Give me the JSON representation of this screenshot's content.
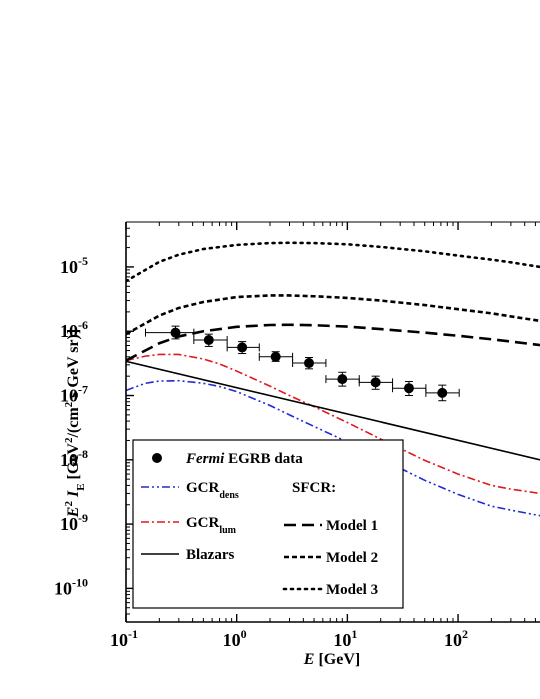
{
  "chart_data": {
    "type": "line",
    "xlabel": {
      "var": "E",
      "unit": "[GeV]"
    },
    "ylabel": {
      "text": "E² I_E [GeV²/(cm² s GeV sr)]"
    },
    "xscale": "log",
    "yscale": "log",
    "xlim": [
      0.1,
      550
    ],
    "ylim": [
      3e-11,
      5e-05
    ],
    "xticks": [
      {
        "value": 0.1,
        "label": "10",
        "exp": "-1"
      },
      {
        "value": 1,
        "label": "10",
        "exp": "0"
      },
      {
        "value": 10,
        "label": "10",
        "exp": "1"
      },
      {
        "value": 100,
        "label": "10",
        "exp": "2"
      }
    ],
    "yticks": [
      {
        "value": 1e-10,
        "label": "10",
        "exp": "-10"
      },
      {
        "value": 1e-09,
        "label": "10",
        "exp": "-9"
      },
      {
        "value": 1e-08,
        "label": "10",
        "exp": "-8"
      },
      {
        "value": 1e-07,
        "label": "10",
        "exp": "-7"
      },
      {
        "value": 1e-06,
        "label": "10",
        "exp": "-6"
      },
      {
        "value": 1e-05,
        "label": "10",
        "exp": "-5"
      }
    ],
    "grid": false,
    "legend": {
      "placement": "bottom-left",
      "data_label": "Fermi EGRB data",
      "data_label_italic": "Fermi",
      "data_label_rest": " EGRB data",
      "sfcr_title": "SFCR:"
    },
    "data_points": {
      "name": "Fermi EGRB data",
      "x": [
        0.28,
        0.56,
        1.12,
        2.25,
        4.5,
        9.0,
        18.0,
        36.0,
        72.0
      ],
      "x_lo": [
        0.15,
        0.41,
        0.82,
        1.6,
        3.2,
        6.4,
        12.8,
        25.6,
        51.2
      ],
      "x_hi": [
        0.41,
        0.82,
        1.6,
        3.2,
        6.4,
        12.8,
        25.6,
        51.2,
        102.4
      ],
      "y": [
        9.5e-07,
        7.3e-07,
        5.6e-07,
        4e-07,
        3.2e-07,
        1.8e-07,
        1.6e-07,
        1.3e-07,
        1.1e-07
      ],
      "y_err_lo": [
        7.6e-07,
        5.8e-07,
        4.5e-07,
        3.4e-07,
        2.6e-07,
        1.4e-07,
        1.25e-07,
        1e-07,
        8.3e-08
      ],
      "y_err_hi": [
        1.2e-06,
        9e-07,
        6.9e-07,
        4.8e-07,
        3.9e-07,
        2.3e-07,
        2e-07,
        1.65e-07,
        1.45e-07
      ],
      "color": "#000000"
    },
    "series": [
      {
        "name": "GCR",
        "sub": "dens",
        "style": "dash-dot-dot",
        "color": "#1f2bd6",
        "x": [
          0.1,
          0.15,
          0.2,
          0.3,
          0.5,
          0.7,
          1,
          2,
          3,
          5,
          10,
          20,
          30,
          50,
          100,
          200,
          300,
          550
        ],
        "y": [
          1.2e-07,
          1.55e-07,
          1.68e-07,
          1.7e-07,
          1.55e-07,
          1.38e-07,
          1.15e-07,
          7e-08,
          5e-08,
          3.3e-08,
          1.9e-08,
          1.05e-08,
          7.4e-09,
          4.8e-09,
          2.9e-09,
          1.9e-09,
          1.65e-09,
          1.35e-09
        ]
      },
      {
        "name": "GCR",
        "sub": "lum",
        "style": "dash-dot",
        "color": "#e0191d",
        "x": [
          0.1,
          0.15,
          0.2,
          0.3,
          0.5,
          0.7,
          1,
          2,
          3,
          5,
          10,
          20,
          30,
          50,
          100,
          200,
          300,
          550
        ],
        "y": [
          3.5e-07,
          4.1e-07,
          4.35e-07,
          4.35e-07,
          3.7e-07,
          3.1e-07,
          2.4e-07,
          1.4e-07,
          1e-07,
          6.7e-08,
          3.8e-08,
          2.1e-08,
          1.5e-08,
          9.8e-09,
          6e-09,
          4e-09,
          3.5e-09,
          3e-09
        ]
      },
      {
        "name": "Blazars",
        "style": "solid",
        "color": "#000000",
        "x": [
          0.1,
          550
        ],
        "y": [
          3.4e-07,
          1e-08
        ]
      },
      {
        "name": "Model 1",
        "style": "long-dash",
        "color": "#000000",
        "x": [
          0.1,
          0.2,
          0.3,
          0.5,
          1,
          2,
          3,
          5,
          10,
          20,
          50,
          100,
          200,
          300,
          550
        ],
        "y": [
          3.5e-07,
          6.5e-07,
          8.3e-07,
          1e-06,
          1.17e-06,
          1.25e-06,
          1.26e-06,
          1.24e-06,
          1.18e-06,
          1.08e-06,
          9.5e-07,
          8.5e-07,
          7.5e-07,
          6.9e-07,
          6.1e-07
        ]
      },
      {
        "name": "Model 2",
        "style": "short-dash",
        "color": "#000000",
        "x": [
          0.1,
          0.2,
          0.3,
          0.5,
          1,
          2,
          3,
          5,
          10,
          20,
          50,
          100,
          200,
          300,
          550
        ],
        "y": [
          9e-07,
          1.75e-06,
          2.3e-06,
          2.85e-06,
          3.4e-06,
          3.6e-06,
          3.6e-06,
          3.5e-06,
          3.3e-06,
          3e-06,
          2.55e-06,
          2.2e-06,
          1.9e-06,
          1.7e-06,
          1.45e-06
        ]
      },
      {
        "name": "Model 3",
        "style": "dotted",
        "color": "#000000",
        "x": [
          0.1,
          0.2,
          0.3,
          0.5,
          1,
          2,
          3,
          5,
          10,
          20,
          50,
          100,
          200,
          300,
          550
        ],
        "y": [
          6e-06,
          1.2e-05,
          1.55e-05,
          1.9e-05,
          2.2e-05,
          2.35e-05,
          2.38e-05,
          2.35e-05,
          2.25e-05,
          2.05e-05,
          1.75e-05,
          1.5e-05,
          1.3e-05,
          1.18e-05,
          1e-05
        ]
      }
    ]
  }
}
